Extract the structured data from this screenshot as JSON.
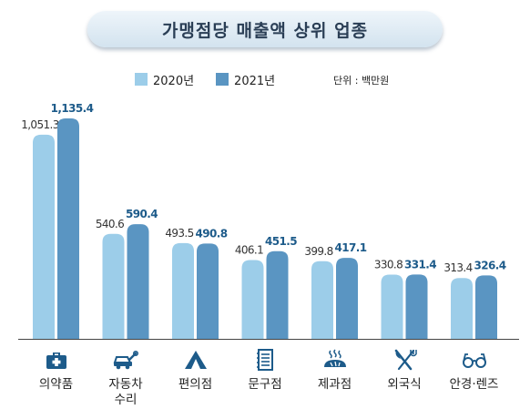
{
  "header": {
    "title": "가맹점당 매출액 상위 업종"
  },
  "legend_labels": {
    "y2020": "2020년",
    "y2021": "2021년"
  },
  "unit": "단위 : 백만원",
  "colors": {
    "y2020": "#9ccde9",
    "y2021": "#5a95c2",
    "icon": "#1d5b8a",
    "label_2021": "#1d5b8a"
  },
  "category_labels": [
    {
      "line1": "의약품",
      "line2": ""
    },
    {
      "line1": "자동차",
      "line2": "수리"
    },
    {
      "line1": "편의점",
      "line2": ""
    },
    {
      "line1": "문구점",
      "line2": ""
    },
    {
      "line1": "제과점",
      "line2": ""
    },
    {
      "line1": "외국식",
      "line2": ""
    },
    {
      "line1": "안경·렌즈",
      "line2": ""
    }
  ],
  "icons": [
    "first-aid-kit-icon",
    "car-wrench-icon",
    "tent-icon",
    "notebook-icon",
    "bread-icon",
    "fork-knife-icon",
    "glasses-icon"
  ],
  "chart_data": {
    "type": "bar",
    "title": "가맹점당 매출액 상위 업종",
    "unit": "단위 : 백만원",
    "categories": [
      "의약품",
      "자동차 수리",
      "편의점",
      "문구점",
      "제과점",
      "외국식",
      "안경·렌즈"
    ],
    "series": [
      {
        "name": "2020년",
        "values": [
          1051.3,
          540.6,
          493.5,
          406.1,
          399.8,
          330.8,
          313.4
        ],
        "labels": [
          "1,051.3",
          "540.6",
          "493.5",
          "406.1",
          "399.8",
          "330.8",
          "313.4"
        ]
      },
      {
        "name": "2021년",
        "values": [
          1135.4,
          590.4,
          490.8,
          451.5,
          417.1,
          331.4,
          326.4
        ],
        "labels": [
          "1,135.4",
          "590.4",
          "490.8",
          "451.5",
          "417.1",
          "331.4",
          "326.4"
        ]
      }
    ],
    "ylim": [
      0,
      1135.4
    ],
    "legend_position": "top-center",
    "grid": false
  }
}
